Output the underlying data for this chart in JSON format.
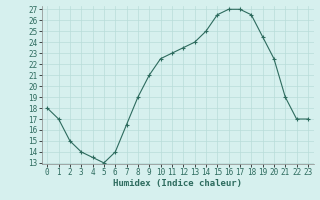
{
  "x": [
    0,
    1,
    2,
    3,
    4,
    5,
    6,
    7,
    8,
    9,
    10,
    11,
    12,
    13,
    14,
    15,
    16,
    17,
    18,
    19,
    20,
    21,
    22,
    23
  ],
  "y": [
    18,
    17,
    15,
    14,
    13.5,
    13,
    14,
    16.5,
    19,
    21,
    22.5,
    23,
    23.5,
    24,
    25,
    26.5,
    27,
    27,
    26.5,
    24.5,
    22.5,
    19,
    17,
    17
  ],
  "xlim": [
    -0.5,
    23.5
  ],
  "ylim": [
    13,
    27
  ],
  "yticks": [
    13,
    14,
    15,
    16,
    17,
    18,
    19,
    20,
    21,
    22,
    23,
    24,
    25,
    26,
    27
  ],
  "xticks": [
    0,
    1,
    2,
    3,
    4,
    5,
    6,
    7,
    8,
    9,
    10,
    11,
    12,
    13,
    14,
    15,
    16,
    17,
    18,
    19,
    20,
    21,
    22,
    23
  ],
  "xlabel": "Humidex (Indice chaleur)",
  "line_color": "#2d6b5e",
  "marker": "+",
  "marker_size": 3,
  "bg_color": "#d6f0ee",
  "grid_color": "#b8ddd9",
  "tick_label_fontsize": 5.5,
  "xlabel_fontsize": 6.5,
  "title": ""
}
